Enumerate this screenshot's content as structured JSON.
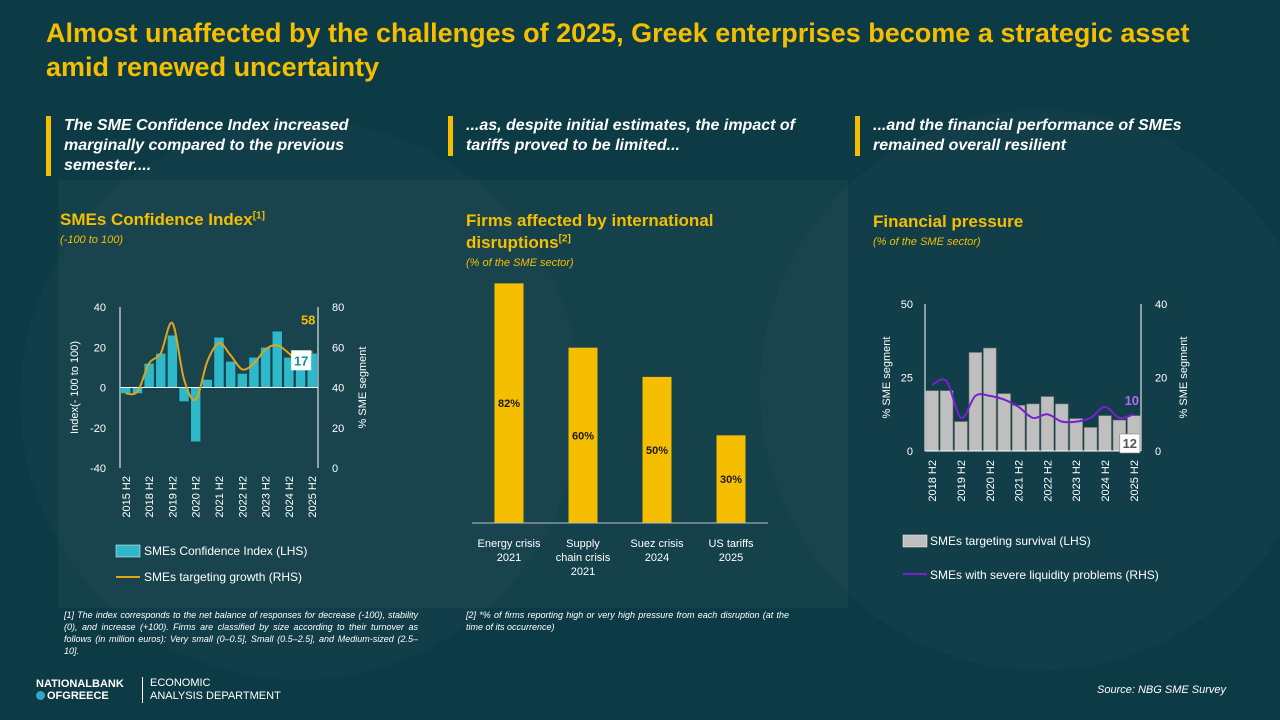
{
  "header": {
    "title": "Almost unaffected by the challenges of 2025, Greek enterprises become a strategic asset amid renewed uncertainty"
  },
  "subtitles": [
    "The SME Confidence Index increased marginally compared to the previous semester....",
    "...as, despite initial estimates, the impact of tariffs proved to be limited...",
    "...and the financial performance of SMEs remained overall resilient"
  ],
  "chart1": {
    "title": "SMEs Confidence Index",
    "title_ref": "[1]",
    "unit": "(-100 to 100)"
  },
  "chart2": {
    "title": "Firms affected by international disruptions",
    "title_ref": "[2]",
    "unit": "(% of the SME sector)"
  },
  "chart3": {
    "title": "Financial pressure",
    "unit": "(% of the SME sector)"
  },
  "footnotes": {
    "f1": "[1] The index corresponds to the net balance of responses for decrease (-100), stability (0), and increase (+100). Firms are classified by size according to their turnover as follows (in million euros): Very small (0–0.5], Small (0.5–2.5], and Medium-sized (2.5–10].",
    "f2": "[2] *% of firms reporting high or very high pressure from each disruption (at the time of its occurrence)"
  },
  "footer": {
    "logo_line1": "NATIONALBANK",
    "logo_line2": "OFGREECE",
    "dept_line1": "ECONOMIC",
    "dept_line2": "ANALYSIS DEPARTMENT",
    "source": "Source: NBG SME Survey"
  },
  "colors": {
    "accent": "#f5be00",
    "background": "#0d3b45",
    "teal_bar": "#2fb8c9",
    "gray_bar": "#bfbfbf",
    "purple_line": "#7a1fd1",
    "orange_line": "#e0a31a"
  },
  "chart_data": [
    {
      "type": "bar+line",
      "title": "SMEs Confidence Index",
      "xlabels": [
        "2015 H2",
        "2018 H2",
        "2019 H2",
        "2020 H2",
        "2021 H2",
        "2022 H2",
        "2023 H2",
        "2024 H2",
        "2025 H2"
      ],
      "ylabel_left": "Index(- 100 to 100)",
      "ylabel_right": "% SME segment",
      "ylim_left": [
        -40,
        40
      ],
      "ylim_right": [
        0,
        80
      ],
      "yticks_left": [
        -40,
        -20,
        0,
        20,
        40
      ],
      "yticks_right": [
        0,
        20,
        40,
        60,
        80
      ],
      "series": [
        {
          "name": "SMEs Confidence Index (LHS)",
          "type": "bar",
          "axis": "left",
          "values": [
            -3,
            -3,
            12,
            17,
            26,
            -7,
            -27,
            4,
            25,
            13,
            7,
            15,
            20,
            28,
            15,
            15,
            17
          ]
        },
        {
          "name": "SMEs targeting growth (RHS)",
          "type": "line",
          "axis": "right",
          "values": [
            37,
            38,
            52,
            57,
            72,
            44,
            34,
            53,
            62,
            56,
            49,
            52,
            59,
            61,
            57,
            52,
            58
          ]
        }
      ],
      "labels": {
        "last_bar": "17",
        "last_line": "58"
      }
    },
    {
      "type": "bar",
      "title": "Firms affected by international disruptions",
      "categories": [
        "Energy crisis 2021",
        "Supply chain crisis 2021",
        "Suez crisis 2024",
        "US tariffs 2025"
      ],
      "category_lines": [
        [
          "Energy crisis",
          "2021"
        ],
        [
          "Supply",
          "chain crisis",
          "2021"
        ],
        [
          "Suez crisis",
          "2024"
        ],
        [
          "US tariffs",
          "2025"
        ]
      ],
      "values": [
        82,
        60,
        50,
        30
      ],
      "value_labels": [
        "82%",
        "60%",
        "50%",
        "30%"
      ],
      "ylim": [
        0,
        90
      ]
    },
    {
      "type": "bar+line",
      "title": "Financial pressure",
      "xlabels": [
        "2018 H2",
        "2019 H2",
        "2020 H2",
        "2021 H2",
        "2022 H2",
        "2023 H2",
        "2024 H2",
        "2025 H2"
      ],
      "ylabel_left": "% SME segment",
      "ylabel_right": "% SME segment",
      "ylim_left": [
        0,
        50
      ],
      "ylim_right": [
        0,
        40
      ],
      "yticks_left": [
        0,
        25,
        50
      ],
      "yticks_right": [
        0,
        20,
        40
      ],
      "series": [
        {
          "name": "SMEs targeting survival (LHS)",
          "type": "bar",
          "axis": "left",
          "values": [
            20.5,
            20.5,
            10,
            33.5,
            35,
            19.5,
            15.5,
            16,
            18.5,
            16,
            11,
            8,
            12,
            10.5,
            12
          ]
        },
        {
          "name": "SMEs with severe liquidity problems (RHS)",
          "type": "line",
          "axis": "right",
          "values": [
            18,
            19,
            9,
            15,
            15,
            14,
            12,
            9,
            10,
            8,
            8,
            9,
            12,
            9,
            10
          ]
        }
      ],
      "labels": {
        "last_bar": "12",
        "last_line": "10"
      }
    }
  ]
}
